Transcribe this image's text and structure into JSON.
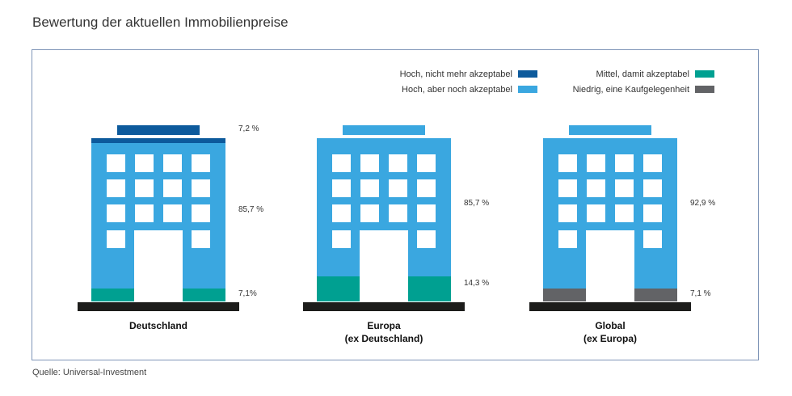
{
  "title": "Bewertung der aktuellen Immobilienpreise",
  "source": "Quelle: Universal-Investment",
  "colors": {
    "hoch_nicht": "#0d5a9c",
    "hoch_noch": "#3aa7e0",
    "mittel": "#00a091",
    "niedrig": "#626366",
    "ground": "#1d1d1b",
    "window": "#ffffff"
  },
  "legend": [
    {
      "label": "Hoch, nicht mehr akzeptabel",
      "color": "#0d5a9c"
    },
    {
      "label": "Hoch, aber noch akzeptabel",
      "color": "#3aa7e0"
    },
    {
      "label": "Mittel, damit akzeptabel",
      "color": "#00a091"
    },
    {
      "label": "Niedrig, eine Kaufgelegenheit",
      "color": "#626366"
    }
  ],
  "chart_data": {
    "type": "bar",
    "title": "Bewertung der aktuellen Immobilienpreise",
    "categories": [
      [
        "Deutschland"
      ],
      [
        "Europa",
        "(ex Deutschland)"
      ],
      [
        "Global",
        "(ex Europa)"
      ]
    ],
    "series": [
      {
        "name": "Hoch, nicht mehr akzeptabel",
        "values": [
          7.2,
          0,
          0
        ],
        "labels": [
          "7,2 %",
          "",
          ""
        ]
      },
      {
        "name": "Hoch, aber noch akzeptabel",
        "values": [
          85.7,
          85.7,
          92.9
        ],
        "labels": [
          "85,7 %",
          "85,7 %",
          "92,9 %"
        ]
      },
      {
        "name": "Mittel, damit akzeptabel",
        "values": [
          7.1,
          14.3,
          0
        ],
        "labels": [
          "7,1%",
          "14,3 %",
          ""
        ]
      },
      {
        "name": "Niedrig, eine Kaufgelegenheit",
        "values": [
          0,
          0,
          7.1
        ],
        "labels": [
          "",
          "",
          "7,1 %"
        ]
      }
    ],
    "stacked": true,
    "legend_position": "top-right"
  }
}
